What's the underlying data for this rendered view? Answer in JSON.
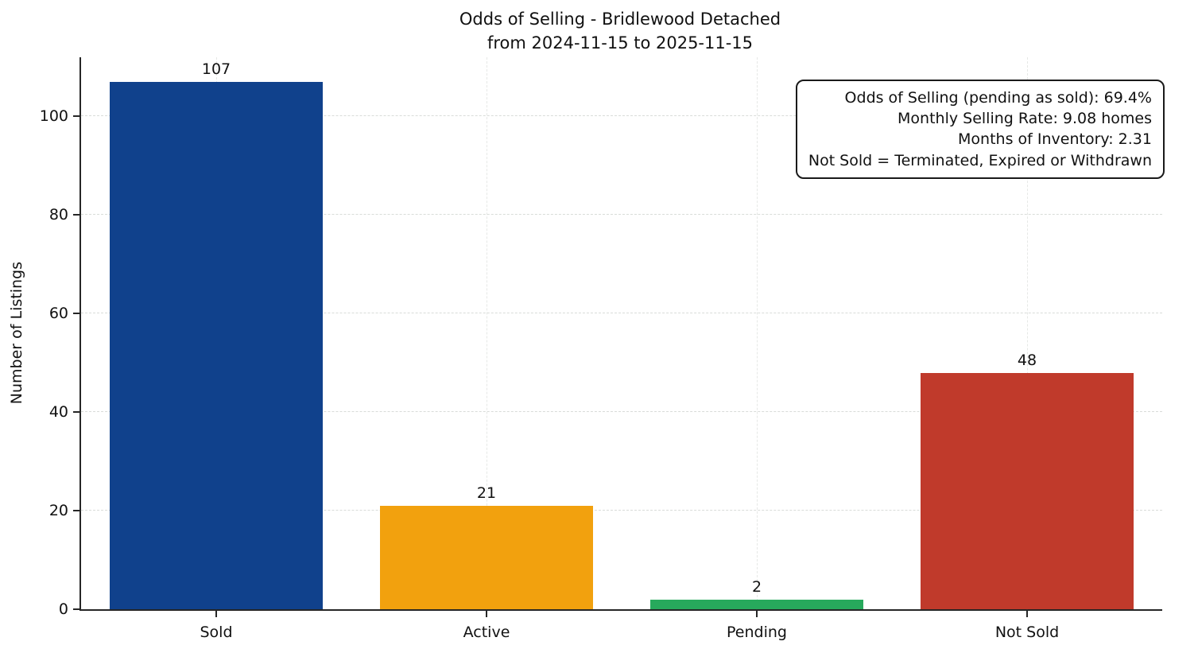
{
  "chart_data": {
    "type": "bar",
    "title": "Odds of Selling - Bridlewood Detached",
    "subtitle": "from 2024-11-15 to 2025-11-15",
    "categories": [
      "Sold",
      "Active",
      "Pending",
      "Not Sold"
    ],
    "values": [
      107,
      21,
      2,
      48
    ],
    "bar_colors": [
      "#10418c",
      "#f2a10e",
      "#27a95c",
      "#c03a2b"
    ],
    "xlabel": "",
    "ylabel": "Number of Listings",
    "ylim": [
      0,
      112
    ],
    "yticks": [
      0,
      20,
      40,
      60,
      80,
      100
    ],
    "grid": "dashed",
    "legend": "none",
    "bar_width_fraction": 0.79,
    "annotation": {
      "lines": [
        "Odds of Selling (pending as sold): 69.4%",
        "Monthly Selling Rate: 9.08 homes",
        "Months of Inventory: 2.31",
        "Not Sold = Terminated, Expired or Withdrawn"
      ]
    }
  }
}
